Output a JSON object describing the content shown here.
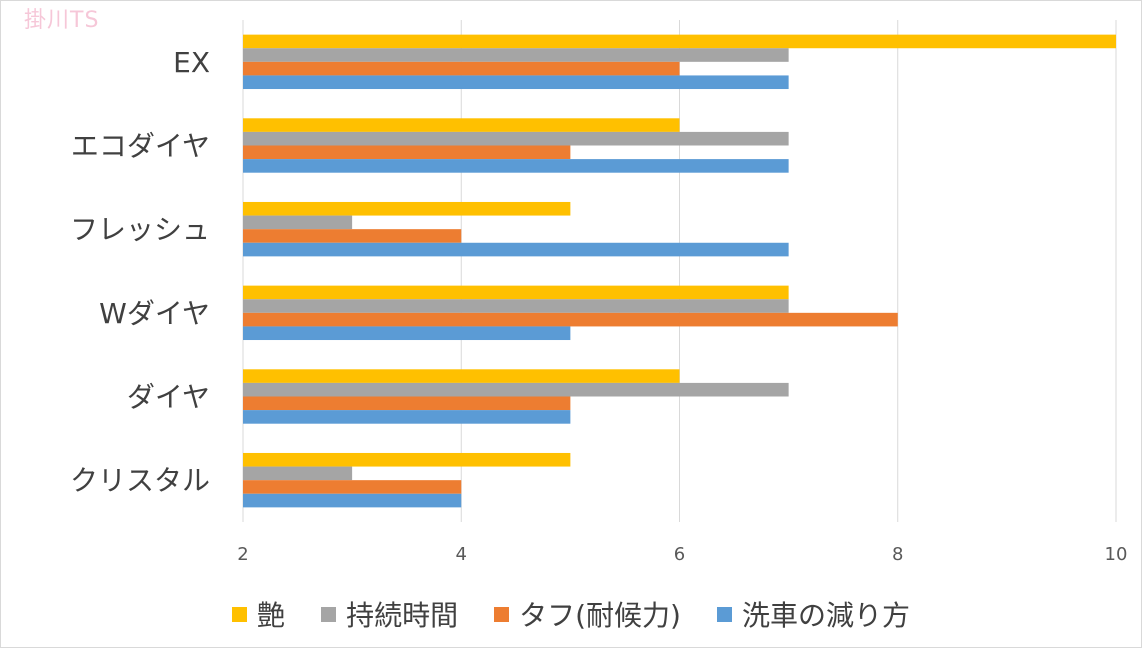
{
  "watermark": "掛川TS",
  "chart_data": {
    "type": "bar",
    "orientation": "horizontal",
    "categories": [
      "EX",
      "エコダイヤ",
      "フレッシュ",
      "Wダイヤ",
      "ダイヤ",
      "クリスタル"
    ],
    "series": [
      {
        "name": "艶",
        "color": "#FFC000",
        "values": [
          10,
          6,
          5,
          7,
          6,
          5
        ]
      },
      {
        "name": "持続時間",
        "color": "#A5A5A5",
        "values": [
          7,
          7,
          3,
          7,
          7,
          3
        ]
      },
      {
        "name": "タフ(耐候力)",
        "color": "#ED7D31",
        "values": [
          6,
          5,
          4,
          8,
          5,
          4
        ]
      },
      {
        "name": "洗車の減り方",
        "color": "#5B9BD5",
        "values": [
          7,
          7,
          7,
          5,
          5,
          4
        ]
      }
    ],
    "xlim": [
      2,
      10
    ],
    "xticks": [
      "2",
      "4",
      "6",
      "8",
      "10"
    ],
    "grid": true,
    "legend": "bottom"
  }
}
